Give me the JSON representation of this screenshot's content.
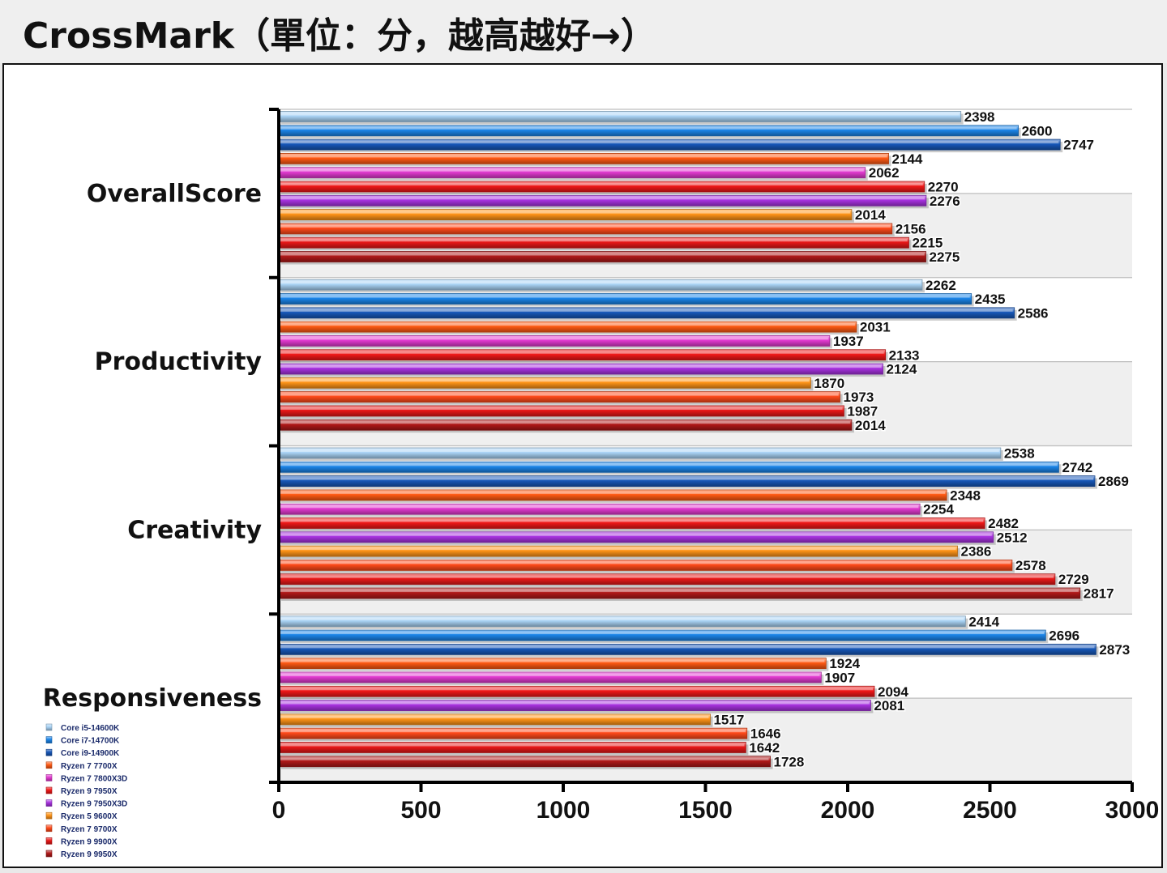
{
  "header": {
    "title": "CrossMark（單位：分，越高越好→）"
  },
  "chart_data": {
    "type": "bar",
    "orientation": "horizontal",
    "title": "CrossMark（單位：分，越高越好→）",
    "xlim": [
      0,
      3000
    ],
    "xticks": [
      "0",
      "500",
      "1000",
      "1500",
      "2000",
      "2500",
      "3000"
    ],
    "grid": true,
    "legend_position": "bottom-left",
    "categories": [
      "OverallScore",
      "Productivity",
      "Creativity",
      "Responsiveness"
    ],
    "series": [
      {
        "name": "Core i5-14600K",
        "color": "#a9d3f5",
        "values": [
          2398,
          2262,
          2538,
          2414
        ]
      },
      {
        "name": "Core i7-14700K",
        "color": "#1b84e8",
        "values": [
          2600,
          2435,
          2742,
          2696
        ]
      },
      {
        "name": "Core i9-14900K",
        "color": "#1757b8",
        "values": [
          2747,
          2586,
          2869,
          2873
        ]
      },
      {
        "name": "Ryzen 7 7700X",
        "color": "#ff5a14",
        "values": [
          2144,
          2031,
          2348,
          1924
        ]
      },
      {
        "name": "Ryzen 7 7800X3D",
        "color": "#e23ad0",
        "values": [
          2062,
          1937,
          2254,
          1907
        ]
      },
      {
        "name": "Ryzen 9 7950X",
        "color": "#f01818",
        "values": [
          2270,
          2133,
          2482,
          2094
        ]
      },
      {
        "name": "Ryzen 9 7950X3D",
        "color": "#a832e0",
        "values": [
          2276,
          2124,
          2512,
          2081
        ]
      },
      {
        "name": "Ryzen 5 9600X",
        "color": "#ff9418",
        "values": [
          2014,
          1870,
          2386,
          1517
        ]
      },
      {
        "name": "Ryzen 7 9700X",
        "color": "#ff4a1a",
        "values": [
          2156,
          1973,
          2578,
          1646
        ]
      },
      {
        "name": "Ryzen 9 9900X",
        "color": "#e81818",
        "values": [
          2215,
          1987,
          2729,
          1642
        ]
      },
      {
        "name": "Ryzen 9 9950X",
        "color": "#b01818",
        "values": [
          2275,
          2014,
          2817,
          1728
        ]
      }
    ]
  }
}
